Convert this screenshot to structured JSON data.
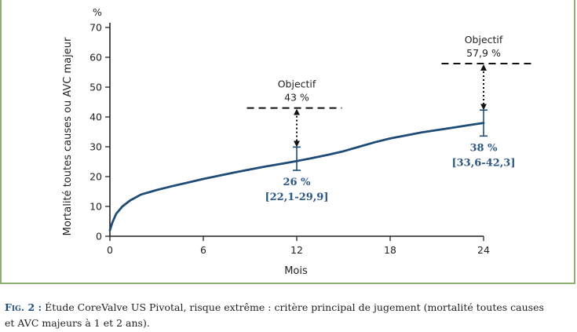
{
  "chart_data": {
    "type": "line",
    "ylabel": "Mortalité toutes causes ou AVC majeur",
    "yunit": "%",
    "xlabel": "Mois",
    "xlim": [
      0,
      24
    ],
    "ylim": [
      0,
      70
    ],
    "xticks": [
      0,
      6,
      12,
      18,
      24
    ],
    "yticks": [
      0,
      10,
      20,
      30,
      40,
      50,
      60,
      70
    ],
    "line_color": "#1f4b77",
    "curve": {
      "x": [
        0,
        0.15,
        0.4,
        0.8,
        1.3,
        2,
        3,
        4,
        5,
        6,
        7,
        8,
        9,
        10,
        11,
        12,
        13,
        14,
        15,
        16,
        17,
        18,
        19,
        20,
        21,
        22,
        23,
        24
      ],
      "y": [
        2,
        4.5,
        7.5,
        10,
        12,
        14,
        15.5,
        16.8,
        18,
        19.2,
        20.3,
        21.4,
        22.4,
        23.4,
        24.3,
        25.2,
        26.2,
        27.3,
        28.5,
        30,
        31.5,
        32.8,
        33.8,
        34.8,
        35.6,
        36.4,
        37.2,
        38
      ]
    },
    "estimates": [
      {
        "x": 12,
        "y": 26,
        "ci": [
          22.1,
          29.9
        ],
        "value_label": "26 %",
        "ci_label": "[22,1-29,9]"
      },
      {
        "x": 24,
        "y": 38,
        "ci": [
          33.6,
          42.3
        ],
        "value_label": "38 %",
        "ci_label": "[33,6-42,3]"
      }
    ],
    "objectives": [
      {
        "x": 12,
        "value": 43,
        "title": "Objectif",
        "value_label": "43 %",
        "x_from": 8.8,
        "x_to": 14.9
      },
      {
        "x": 24,
        "value": 57.9,
        "title": "Objectif",
        "value_label": "57,9 %",
        "x_from": 21.3,
        "x_to": 27.2
      }
    ]
  },
  "caption": {
    "fig_label": "Fig. 2 :",
    "line1": " Étude CoreValve US Pivotal, risque extrême : critère principal de jugement (mortalité toutes causes",
    "line2": "et AVC majeurs à 1 et 2 ans)."
  }
}
